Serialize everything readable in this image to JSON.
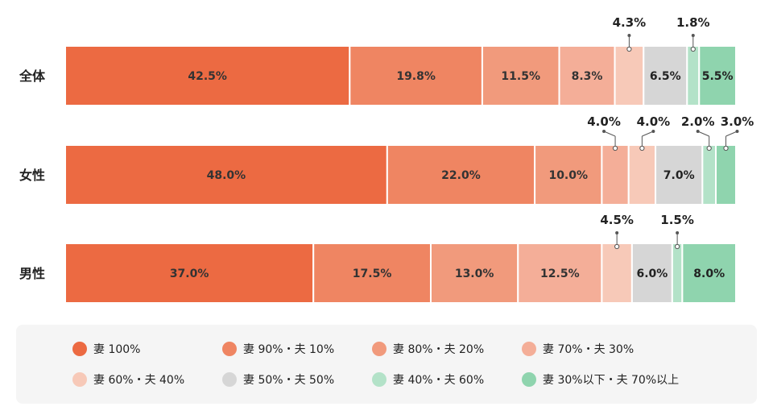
{
  "chart_data": {
    "type": "bar",
    "orientation": "horizontal",
    "stacked": true,
    "normalized_to": 100,
    "categories": [
      "全体",
      "女性",
      "男性"
    ],
    "series": [
      {
        "name": "妻 100%",
        "color": "#ec6a42",
        "values": [
          42.5,
          48.0,
          37.0
        ],
        "labels": [
          "42.5%",
          "48.0%",
          "37.0%"
        ]
      },
      {
        "name": "妻 90%・夫 10%",
        "color": "#ef8562",
        "values": [
          19.8,
          22.0,
          17.5
        ],
        "labels": [
          "19.8%",
          "22.0%",
          "17.5%"
        ]
      },
      {
        "name": "妻 80%・夫 20%",
        "color": "#f19a7c",
        "values": [
          11.5,
          10.0,
          13.0
        ],
        "labels": [
          "11.5%",
          "10.0%",
          "13.0%"
        ]
      },
      {
        "name": "妻 70%・夫 30%",
        "color": "#f4ae98",
        "values": [
          8.3,
          4.0,
          12.5
        ],
        "labels": [
          "8.3%",
          "4.0%",
          "12.5%"
        ]
      },
      {
        "name": "妻 60%・夫 40%",
        "color": "#f7c9b8",
        "values": [
          4.3,
          4.0,
          4.5
        ],
        "labels": [
          "4.3%",
          "4.0%",
          "4.5%"
        ]
      },
      {
        "name": "妻 50%・夫 50%",
        "color": "#d6d6d6",
        "values": [
          6.5,
          7.0,
          6.0
        ],
        "labels": [
          "6.5%",
          "7.0%",
          "6.0%"
        ]
      },
      {
        "name": "妻 40%・夫 60%",
        "color": "#b3e2c8",
        "values": [
          1.8,
          2.0,
          1.5
        ],
        "labels": [
          "1.8%",
          "2.0%",
          "1.5%"
        ]
      },
      {
        "name": "妻 30%以下・夫 70%以上",
        "color": "#8fd4ae",
        "values": [
          5.5,
          3.0,
          8.0
        ],
        "labels": [
          "5.5%",
          "3.0%",
          "8.0%"
        ]
      }
    ],
    "callout_labels": [
      [
        {
          "series": 4,
          "side": "center"
        },
        {
          "series": 6,
          "side": "center"
        }
      ],
      [
        {
          "series": 3,
          "side": "left"
        },
        {
          "series": 4,
          "side": "right"
        },
        {
          "series": 6,
          "side": "left"
        },
        {
          "series": 7,
          "side": "right"
        }
      ],
      [
        {
          "series": 4,
          "side": "center"
        },
        {
          "series": 6,
          "side": "center"
        }
      ]
    ],
    "legend_position": "bottom",
    "grid": false
  }
}
